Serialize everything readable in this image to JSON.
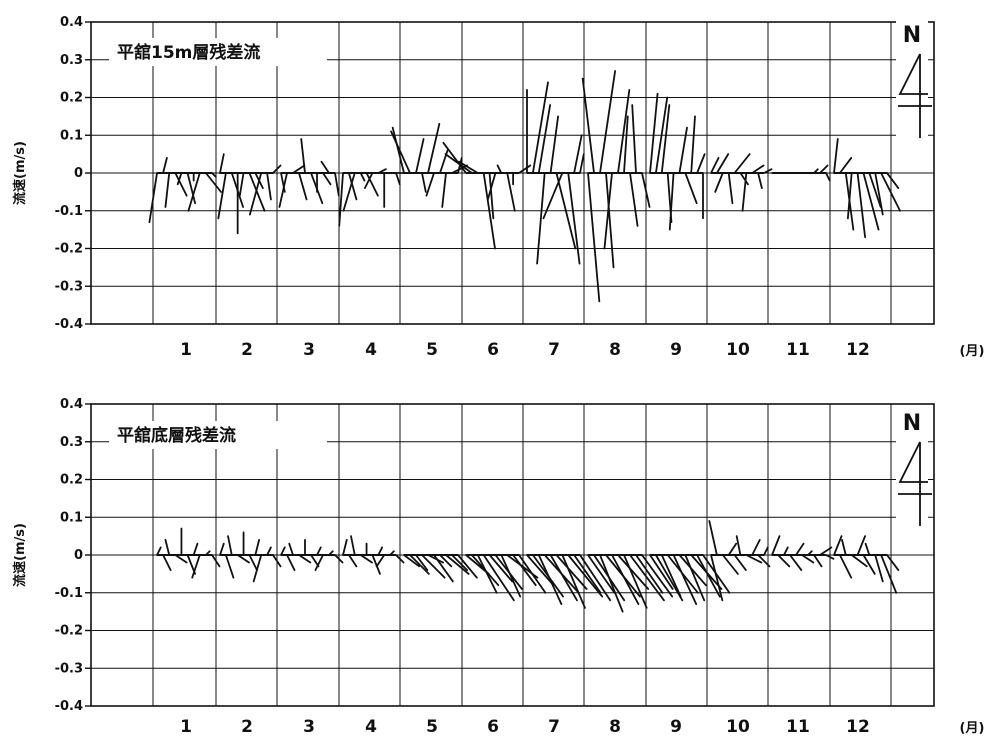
{
  "chart_data": [
    {
      "type": "stick_vector",
      "title": "平舘15m層残差流",
      "ylabel": "流速(m/s)",
      "xunit": "(月)",
      "north_label": "N",
      "ylim": [
        -0.4,
        0.4
      ],
      "yticks": [
        "0.4",
        "0.3",
        "0.2",
        "0.1",
        "0",
        "-0.1",
        "-0.2",
        "-0.3",
        "-0.4"
      ],
      "categories": [
        "1",
        "2",
        "3",
        "4",
        "5",
        "6",
        "7",
        "8",
        "9",
        "10",
        "11",
        "12"
      ],
      "grid": true,
      "series": [
        {
          "month": 1,
          "u": [
            -0.02,
            0.01,
            -0.01,
            0.03,
            -0.01,
            0.02,
            0.0,
            -0.03,
            0.04,
            0.01
          ],
          "v": [
            -0.13,
            0.04,
            -0.09,
            -0.06,
            -0.03,
            -0.08,
            -0.02,
            -0.1,
            -0.05,
            -0.01
          ]
        },
        {
          "month": 2,
          "u": [
            0.01,
            -0.02,
            0.03,
            0.0,
            -0.01,
            0.04,
            0.02,
            -0.03,
            0.01,
            0.02
          ],
          "v": [
            0.05,
            -0.12,
            -0.09,
            -0.16,
            -0.06,
            -0.1,
            -0.04,
            -0.11,
            -0.07,
            0.02
          ]
        },
        {
          "month": 3,
          "u": [
            0.01,
            -0.02,
            0.03,
            0.02,
            -0.01,
            0.03,
            0.0,
            0.02,
            -0.02,
            0.01
          ],
          "v": [
            -0.05,
            -0.09,
            0.02,
            -0.07,
            0.09,
            -0.08,
            -0.05,
            -0.03,
            0.03,
            -0.06
          ]
        },
        {
          "month": 4,
          "u": [
            -0.01,
            0.02,
            -0.03,
            0.01,
            0.03,
            -0.02,
            0.02,
            0.0,
            0.04,
            0.01
          ],
          "v": [
            -0.14,
            -0.07,
            -0.1,
            -0.02,
            -0.06,
            -0.04,
            0.01,
            -0.09,
            0.0,
            -0.03
          ]
        },
        {
          "month": 5,
          "u": [
            -0.03,
            -0.05,
            0.02,
            0.01,
            0.03,
            -0.02,
            0.02,
            -0.01,
            0.04,
            0.01
          ],
          "v": [
            0.12,
            0.11,
            0.09,
            -0.05,
            0.13,
            -0.06,
            0.06,
            -0.09,
            0.02,
            0.04
          ]
        },
        {
          "month": 6,
          "u": [
            -0.06,
            -0.07,
            -0.05,
            0.03,
            0.01,
            -0.02,
            -0.01,
            0.02,
            0.0,
            0.03
          ],
          "v": [
            0.08,
            0.05,
            0.03,
            -0.2,
            -0.12,
            -0.07,
            0.02,
            -0.1,
            -0.03,
            0.02
          ]
        },
        {
          "month": 7,
          "u": [
            0.0,
            0.04,
            0.03,
            -0.02,
            0.02,
            0.05,
            -0.05,
            0.03,
            0.02,
            0.01
          ],
          "v": [
            0.22,
            0.24,
            0.18,
            -0.24,
            0.15,
            -0.2,
            -0.12,
            -0.24,
            0.1,
            0.05
          ]
        },
        {
          "month": 8,
          "u": [
            0.03,
            -0.03,
            0.04,
            0.02,
            -0.02,
            0.03,
            0.01,
            0.02,
            -0.01,
            0.02
          ],
          "v": [
            -0.34,
            0.25,
            0.27,
            -0.25,
            -0.2,
            0.22,
            0.15,
            -0.14,
            0.18,
            -0.09
          ]
        },
        {
          "month": 9,
          "u": [
            0.02,
            0.03,
            0.02,
            0.01,
            -0.01,
            0.02,
            0.03,
            0.01,
            0.02,
            0.0
          ],
          "v": [
            0.21,
            0.2,
            0.18,
            -0.13,
            -0.15,
            0.12,
            -0.08,
            0.15,
            0.05,
            -0.12
          ]
        },
        {
          "month": 10,
          "u": [
            0.02,
            0.03,
            -0.02,
            0.01,
            0.04,
            0.02,
            -0.01,
            0.03,
            0.01,
            0.02
          ],
          "v": [
            0.04,
            0.05,
            -0.05,
            -0.08,
            0.05,
            -0.03,
            -0.1,
            0.02,
            -0.04,
            0.01
          ]
        },
        {
          "month": 11,
          "u": [
            0.0,
            0.0,
            0.0,
            0.0,
            0.0,
            0.0,
            0.0,
            0.01,
            0.02,
            0.01
          ],
          "v": [
            0.0,
            0.0,
            0.0,
            0.0,
            0.0,
            0.0,
            0.0,
            0.01,
            0.02,
            -0.02
          ]
        },
        {
          "month": 12,
          "u": [
            0.01,
            0.03,
            0.02,
            -0.01,
            0.02,
            0.04,
            0.03,
            0.02,
            0.05,
            0.03
          ],
          "v": [
            0.09,
            0.04,
            -0.15,
            -0.12,
            -0.17,
            -0.15,
            -0.09,
            -0.11,
            -0.1,
            -0.04
          ]
        }
      ]
    },
    {
      "type": "stick_vector",
      "title": "平舘底層残差流",
      "ylabel": "流速(m/s)",
      "xunit": "(月)",
      "north_label": "N",
      "ylim": [
        -0.4,
        0.4
      ],
      "yticks": [
        "0.4",
        "0.3",
        "0.2",
        "0.1",
        "0",
        "-0.1",
        "-0.2",
        "-0.3",
        "-0.4"
      ],
      "categories": [
        "1",
        "2",
        "3",
        "4",
        "5",
        "6",
        "7",
        "8",
        "9",
        "10",
        "11",
        "12"
      ],
      "grid": true,
      "series": [
        {
          "month": 1,
          "u": [
            0.01,
            0.02,
            -0.01,
            0.03,
            0.0,
            0.02,
            0.01,
            -0.02,
            0.01,
            0.02
          ],
          "v": [
            0.02,
            -0.04,
            0.04,
            -0.02,
            0.07,
            -0.05,
            0.03,
            -0.06,
            0.01,
            -0.03
          ]
        },
        {
          "month": 2,
          "u": [
            0.01,
            0.02,
            -0.01,
            0.03,
            0.0,
            0.02,
            0.01,
            -0.02,
            0.01,
            0.02
          ],
          "v": [
            0.03,
            -0.06,
            0.05,
            -0.02,
            0.06,
            -0.04,
            0.04,
            -0.07,
            0.02,
            -0.03
          ]
        },
        {
          "month": 3,
          "u": [
            0.01,
            0.02,
            -0.01,
            0.03,
            0.0,
            0.02,
            0.01,
            -0.02,
            0.01,
            0.02
          ],
          "v": [
            0.02,
            -0.04,
            0.03,
            -0.02,
            0.04,
            -0.03,
            0.02,
            -0.04,
            0.01,
            -0.02
          ]
        },
        {
          "month": 4,
          "u": [
            0.01,
            0.02,
            -0.01,
            0.03,
            0.0,
            0.02,
            0.01,
            -0.02,
            0.01,
            0.02
          ],
          "v": [
            0.04,
            -0.03,
            0.05,
            -0.02,
            0.03,
            -0.05,
            0.02,
            -0.03,
            0.01,
            -0.02
          ]
        },
        {
          "month": 5,
          "u": [
            0.04,
            0.05,
            0.03,
            0.06,
            0.04,
            0.05,
            0.03,
            0.06,
            0.04,
            0.05
          ],
          "v": [
            -0.03,
            -0.05,
            -0.04,
            -0.06,
            -0.02,
            -0.07,
            -0.03,
            -0.05,
            -0.04,
            -0.06
          ]
        },
        {
          "month": 6,
          "u": [
            0.06,
            0.07,
            0.05,
            0.08,
            0.06,
            0.07,
            0.05,
            0.08,
            0.06,
            0.07
          ],
          "v": [
            -0.05,
            -0.08,
            -0.1,
            -0.12,
            -0.07,
            -0.09,
            -0.11,
            -0.06,
            -0.08,
            -0.1
          ]
        },
        {
          "month": 7,
          "u": [
            0.07,
            0.08,
            0.06,
            0.09,
            0.07,
            0.08,
            0.06,
            0.09,
            0.07,
            0.08
          ],
          "v": [
            -0.08,
            -0.11,
            -0.13,
            -0.1,
            -0.12,
            -0.09,
            -0.14,
            -0.11,
            -0.1,
            -0.12
          ]
        },
        {
          "month": 8,
          "u": [
            0.07,
            0.08,
            0.06,
            0.09,
            0.07,
            0.08,
            0.06,
            0.09,
            0.07,
            0.08
          ],
          "v": [
            -0.1,
            -0.12,
            -0.15,
            -0.11,
            -0.13,
            -0.09,
            -0.14,
            -0.12,
            -0.1,
            -0.11
          ]
        },
        {
          "month": 9,
          "u": [
            0.06,
            0.07,
            0.05,
            0.08,
            0.06,
            0.07,
            0.05,
            0.08,
            0.06,
            0.07
          ],
          "v": [
            -0.09,
            -0.12,
            -0.11,
            -0.1,
            -0.13,
            -0.08,
            -0.12,
            -0.09,
            -0.11,
            -0.1
          ]
        },
        {
          "month": 10,
          "u": [
            0.03,
            -0.02,
            0.04,
            0.02,
            0.03,
            -0.01,
            0.04,
            0.02,
            0.03,
            0.01
          ],
          "v": [
            -0.12,
            0.09,
            -0.05,
            0.03,
            -0.04,
            0.05,
            -0.02,
            0.04,
            -0.03,
            0.02
          ]
        },
        {
          "month": 11,
          "u": [
            0.02,
            0.03,
            0.01,
            0.03,
            0.02,
            0.03,
            0.01,
            0.02,
            0.03,
            0.02
          ],
          "v": [
            0.05,
            -0.03,
            0.02,
            -0.04,
            0.03,
            -0.02,
            0.01,
            -0.03,
            0.02,
            -0.01
          ]
        },
        {
          "month": 12,
          "u": [
            0.02,
            0.03,
            -0.01,
            0.04,
            0.02,
            0.03,
            -0.01,
            0.02,
            0.04,
            0.03
          ],
          "v": [
            0.05,
            -0.06,
            0.04,
            -0.03,
            0.05,
            -0.05,
            0.03,
            -0.07,
            -0.1,
            -0.04
          ]
        }
      ]
    }
  ]
}
